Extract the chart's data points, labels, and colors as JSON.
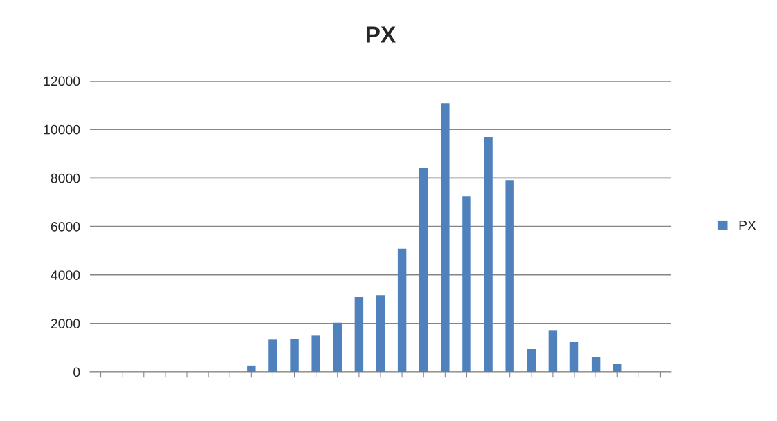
{
  "chart_data": {
    "type": "bar",
    "title": "PX",
    "categories": [
      null,
      null,
      null,
      null,
      null,
      null,
      null,
      null,
      null,
      null,
      null,
      null,
      null,
      null,
      null,
      null,
      null,
      null,
      null,
      null,
      null,
      null,
      null,
      null,
      null,
      null,
      null
    ],
    "series": [
      {
        "name": "PX",
        "color": "#4f81bd",
        "values": [
          null,
          null,
          null,
          null,
          null,
          null,
          null,
          260,
          1330,
          1360,
          1500,
          2030,
          3080,
          3160,
          5080,
          8410,
          11080,
          7230,
          9690,
          7890,
          940,
          1700,
          1240,
          610,
          330,
          null,
          null
        ]
      }
    ],
    "ylim": [
      0,
      12000
    ],
    "yticks": [
      0,
      2000,
      4000,
      6000,
      8000,
      10000,
      12000
    ],
    "grid": "y",
    "legend": "right"
  }
}
